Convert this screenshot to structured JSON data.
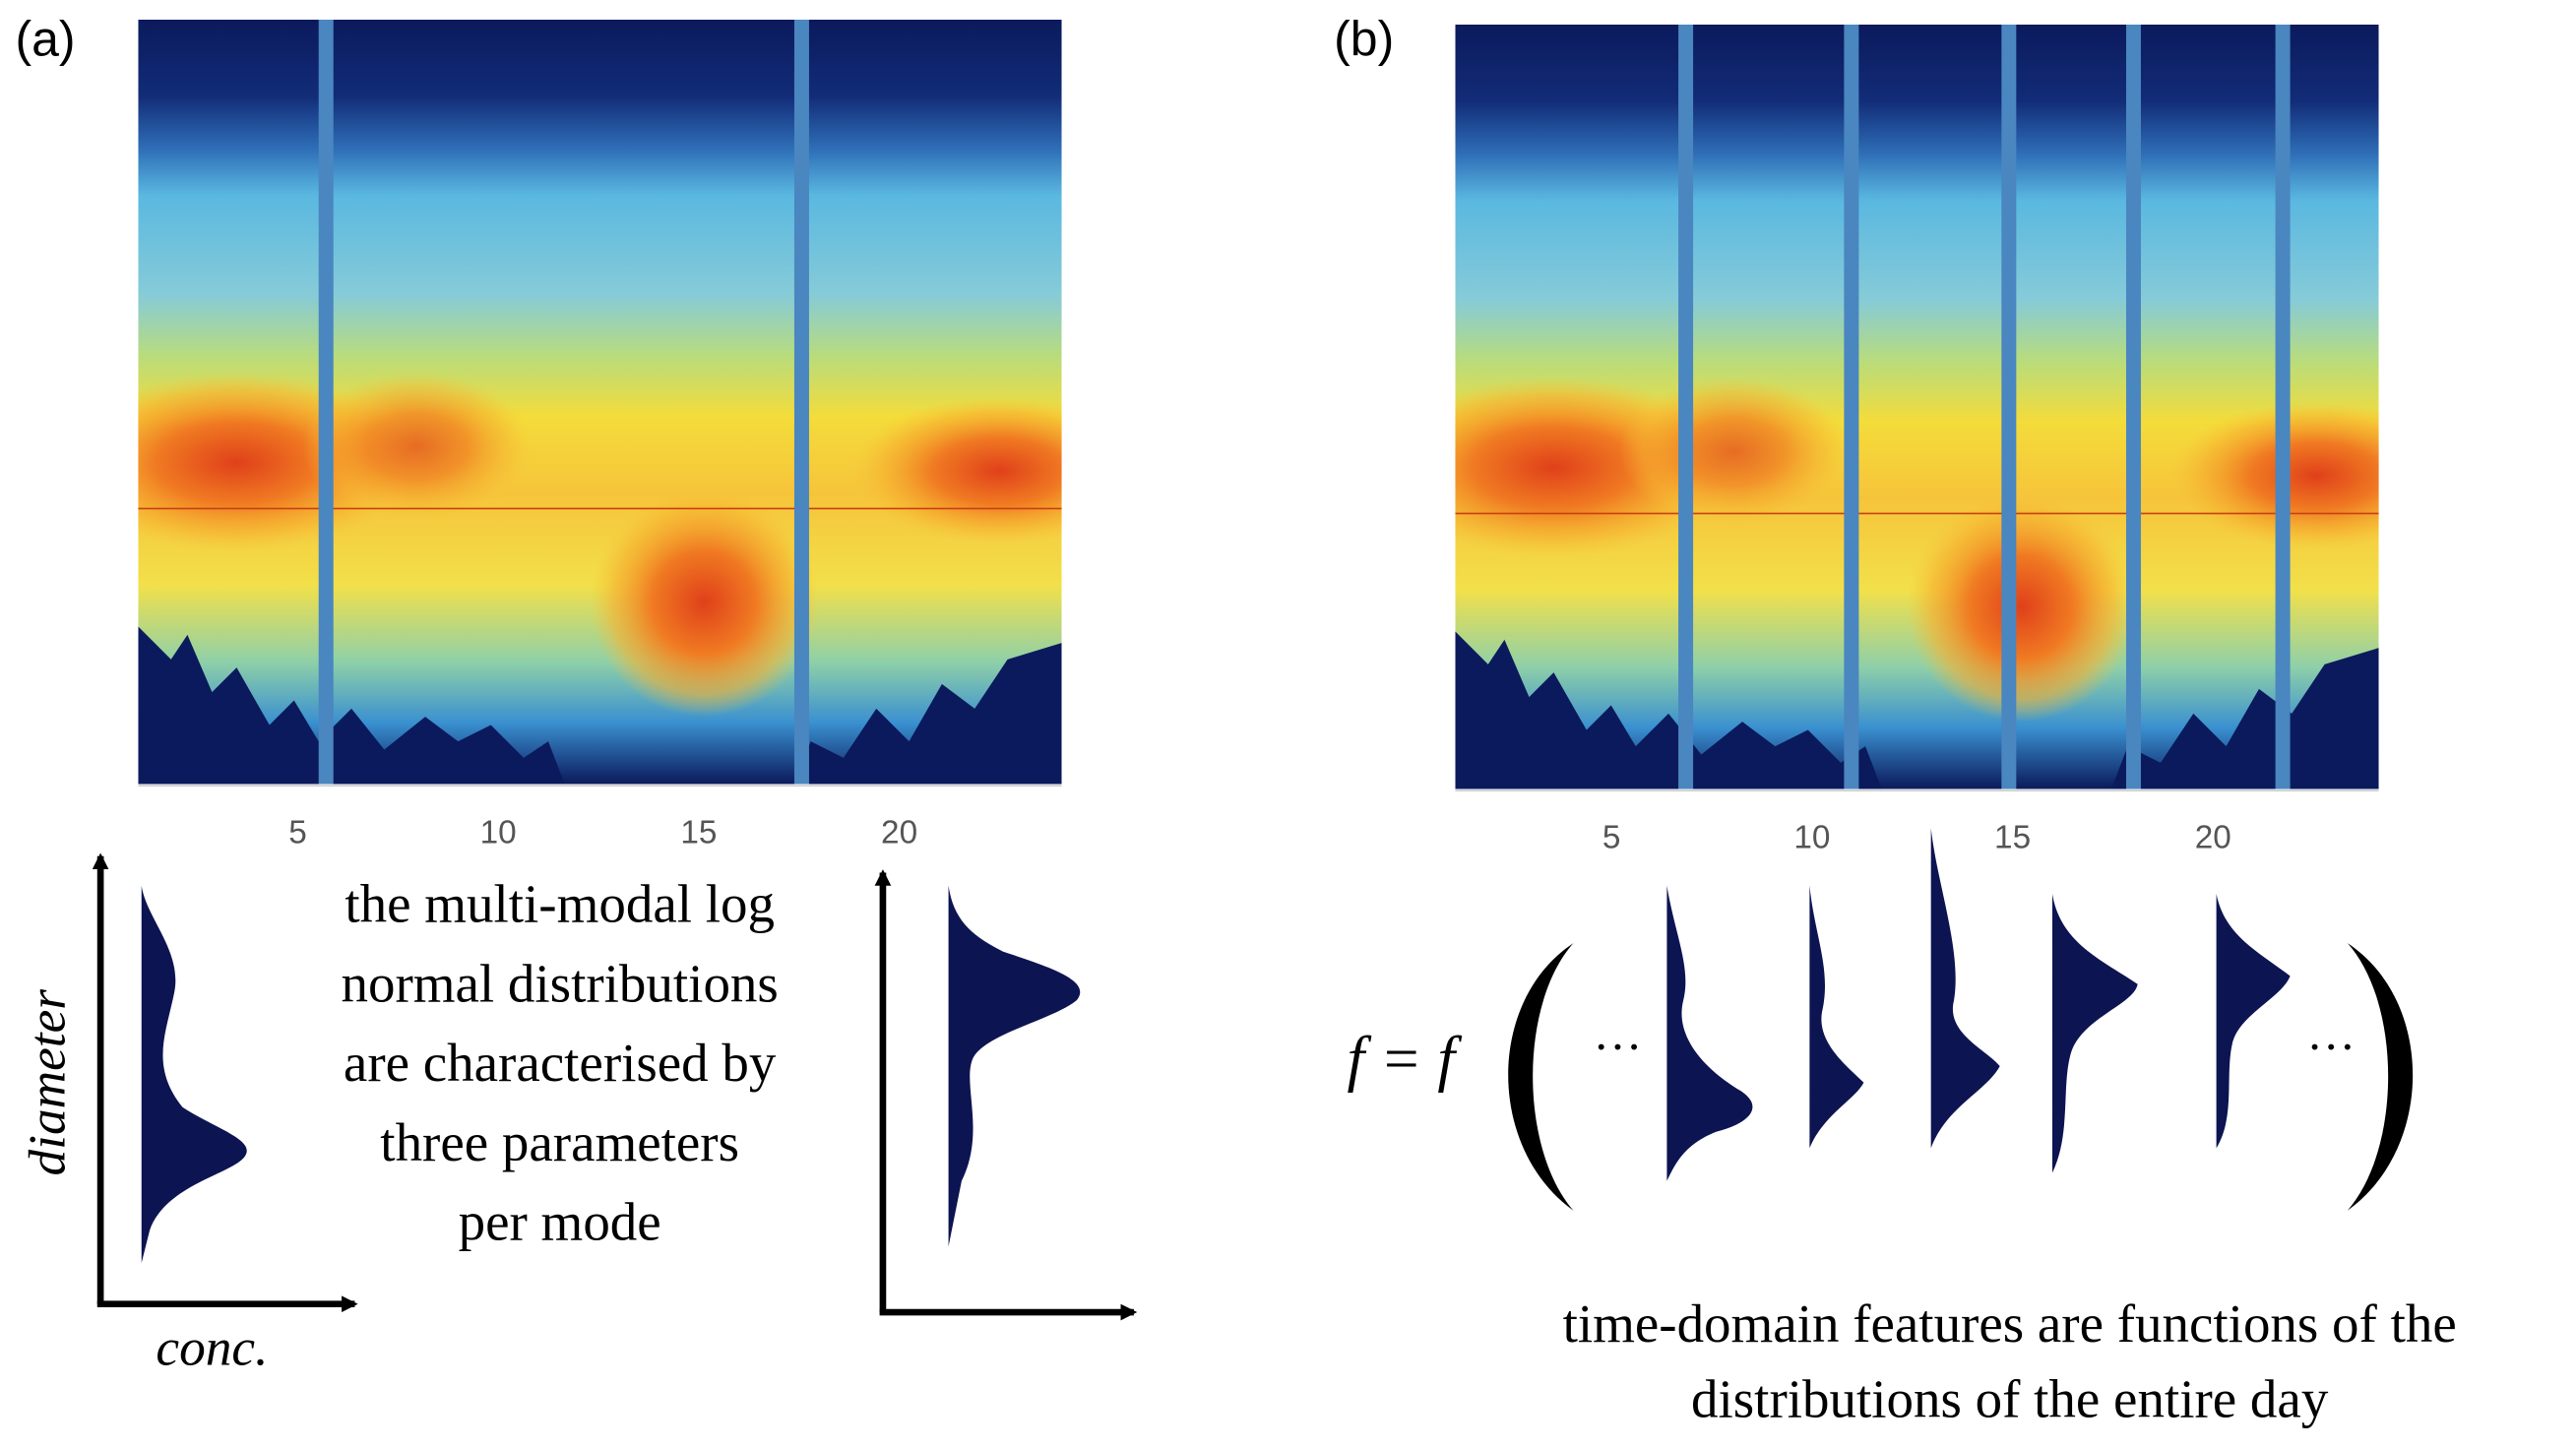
{
  "panels": [
    {
      "label": "(a)",
      "xticks": [
        5,
        10,
        15,
        20
      ],
      "y_axis_label": "diameter",
      "x_axis_label": "conc.",
      "text_lines": [
        "the multi-modal log",
        "normal distributions",
        "are characterised by",
        "three parameters",
        "per mode"
      ]
    },
    {
      "label": "(b)",
      "xticks": [
        5,
        10,
        15,
        20
      ],
      "formula": "f = f",
      "ellipsis_left": "···",
      "ellipsis_right": "···",
      "caption_lines": [
        "time-domain features are functions of the",
        "distributions of the entire day"
      ]
    }
  ]
}
